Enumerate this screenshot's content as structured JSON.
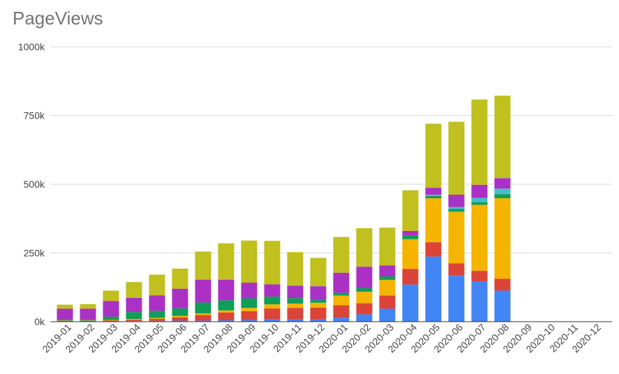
{
  "chart_data": {
    "type": "bar",
    "stacked": true,
    "title": "PageViews",
    "xlabel": "",
    "ylabel": "",
    "ylim": [
      0,
      1000000
    ],
    "y_ticks": [
      {
        "value": 0,
        "label": "0k"
      },
      {
        "value": 250000,
        "label": "250k"
      },
      {
        "value": 500000,
        "label": "500k"
      },
      {
        "value": 750000,
        "label": "750k"
      },
      {
        "value": 1000000,
        "label": "1000k"
      }
    ],
    "grid": true,
    "legend": "none",
    "categories": [
      "2019-01",
      "2019-02",
      "2019-03",
      "2019-04",
      "2019-05",
      "2019-06",
      "2019-07",
      "2019-08",
      "2019-09",
      "2019-10",
      "2019-11",
      "2019-12",
      "2020-01",
      "2020-02",
      "2020-03",
      "2020-04",
      "2020-05",
      "2020-06",
      "2020-07",
      "2020-08",
      "2020-09",
      "2020-10",
      "2020-11",
      "2020-12"
    ],
    "series": [
      {
        "color": "#4285f4",
        "values": [
          1000,
          1000,
          1000,
          2000,
          3000,
          4000,
          4000,
          5000,
          6000,
          8000,
          8000,
          8000,
          15000,
          27000,
          47000,
          135000,
          237000,
          167000,
          147000,
          113000,
          0,
          0,
          0,
          0
        ]
      },
      {
        "color": "#db4437",
        "values": [
          2000,
          2000,
          3000,
          5000,
          7000,
          12000,
          20000,
          28000,
          32000,
          40000,
          42000,
          43000,
          45000,
          40000,
          48000,
          57000,
          52000,
          45000,
          38000,
          43000,
          0,
          0,
          0,
          0
        ]
      },
      {
        "color": "#f4b400",
        "values": [
          1000,
          1000,
          2000,
          3000,
          4000,
          5000,
          6000,
          8000,
          12000,
          15000,
          16000,
          18000,
          35000,
          42000,
          57000,
          108000,
          160000,
          188000,
          240000,
          293000,
          0,
          0,
          0,
          0
        ]
      },
      {
        "color": "#0f9d58",
        "values": [
          3000,
          3000,
          12000,
          25000,
          25000,
          28000,
          40000,
          37000,
          35000,
          28000,
          20000,
          10000,
          10000,
          13000,
          13000,
          15000,
          8000,
          10000,
          10000,
          15000,
          0,
          0,
          0,
          0
        ]
      },
      {
        "color": "#46bdc6",
        "values": [
          0,
          0,
          0,
          0,
          0,
          0,
          0,
          0,
          0,
          0,
          0,
          0,
          0,
          0,
          0,
          0,
          5000,
          7000,
          15000,
          20000,
          0,
          0,
          0,
          0
        ]
      },
      {
        "color": "#ab30c4",
        "values": [
          40000,
          40000,
          57000,
          52000,
          57000,
          71000,
          83000,
          75000,
          57000,
          45000,
          45000,
          50000,
          73000,
          78000,
          40000,
          15000,
          25000,
          45000,
          48000,
          38000,
          0,
          0,
          0,
          0
        ]
      },
      {
        "color": "#c0c01e",
        "values": [
          15000,
          17000,
          38000,
          57000,
          75000,
          73000,
          102000,
          132000,
          153000,
          158000,
          122000,
          103000,
          130000,
          140000,
          137000,
          148000,
          233000,
          265000,
          310000,
          300000,
          0,
          0,
          0,
          0
        ]
      }
    ]
  }
}
